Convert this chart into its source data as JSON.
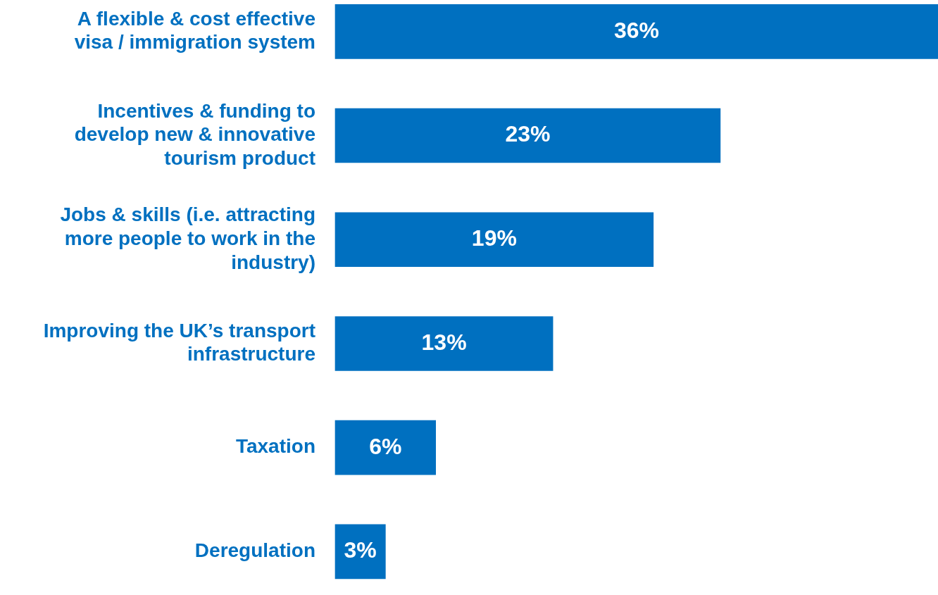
{
  "chart_data": {
    "type": "bar",
    "orientation": "horizontal",
    "categories": [
      "A flexible & cost effective visa / immigration system",
      "Incentives & funding to develop new & innovative tourism product",
      "Jobs & skills (i.e. attracting more people to work in the industry)",
      "Improving the UK’s transport infrastructure",
      "Taxation",
      "Deregulation"
    ],
    "values": [
      36,
      23,
      19,
      13,
      6,
      3
    ],
    "value_labels": [
      "36%",
      "23%",
      "19%",
      "13%",
      "6%",
      "3%"
    ],
    "color": "#0070c0"
  }
}
